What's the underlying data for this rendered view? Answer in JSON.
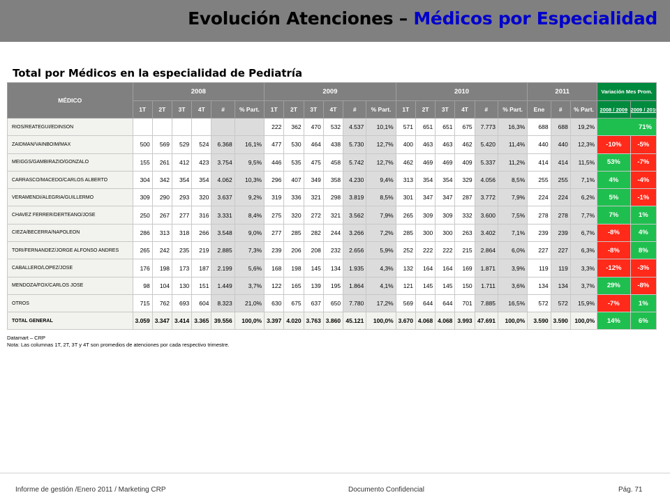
{
  "header": {
    "title_part1": "Evolución Atenciones – ",
    "title_part2": "Médicos por Especialidad"
  },
  "subtitle": "Total por Médicos en la especialidad de Pediatría",
  "table": {
    "medico_header": "MÉDICO",
    "years": [
      "2008",
      "2009",
      "2010",
      "2011"
    ],
    "variacion_header": "Variación Mes Prom.",
    "variacion_cols": [
      "2008 / 2009",
      "2009 / 2010"
    ],
    "quarter_headers": [
      "1T",
      "2T",
      "3T",
      "4T",
      "#",
      "% Part."
    ],
    "y2011_headers": [
      "Ene",
      "#",
      "% Part."
    ],
    "rows": [
      {
        "medico": "RIOS/REATEGUI/EDINSON",
        "y2008": [
          "",
          "",
          "",
          "",
          "",
          ""
        ],
        "y2009": [
          "222",
          "362",
          "470",
          "532",
          "4.537",
          "10,1%"
        ],
        "y2010": [
          "571",
          "651",
          "651",
          "675",
          "7.773",
          "16,3%"
        ],
        "y2011": [
          "688",
          "688",
          "19,2%"
        ],
        "var1": "71%",
        "var2": "",
        "var1_type": "pos",
        "var2_type": "pos",
        "merged": true
      },
      {
        "medico": "ZAIDMAN/VAINBOIM/MAX",
        "y2008": [
          "500",
          "569",
          "529",
          "524",
          "6.368",
          "16,1%"
        ],
        "y2009": [
          "477",
          "530",
          "464",
          "438",
          "5.730",
          "12,7%"
        ],
        "y2010": [
          "400",
          "463",
          "463",
          "462",
          "5.420",
          "11,4%"
        ],
        "y2011": [
          "440",
          "440",
          "12,3%"
        ],
        "var1": "-10%",
        "var2": "-5%",
        "var1_type": "neg",
        "var2_type": "neg"
      },
      {
        "medico": "MEIGGS/GAMBIRAZIO/GONZALO",
        "y2008": [
          "155",
          "261",
          "412",
          "423",
          "3.754",
          "9,5%"
        ],
        "y2009": [
          "446",
          "535",
          "475",
          "458",
          "5.742",
          "12,7%"
        ],
        "y2010": [
          "462",
          "469",
          "469",
          "409",
          "5.337",
          "11,2%"
        ],
        "y2011": [
          "414",
          "414",
          "11,5%"
        ],
        "var1": "53%",
        "var2": "-7%",
        "var1_type": "pos",
        "var2_type": "neg"
      },
      {
        "medico": "CARRASCO/MACEDO/CARLOS ALBERTO",
        "y2008": [
          "304",
          "342",
          "354",
          "354",
          "4.062",
          "10,3%"
        ],
        "y2009": [
          "296",
          "407",
          "349",
          "358",
          "4.230",
          "9,4%"
        ],
        "y2010": [
          "313",
          "354",
          "354",
          "329",
          "4.056",
          "8,5%"
        ],
        "y2011": [
          "255",
          "255",
          "7,1%"
        ],
        "var1": "4%",
        "var2": "-4%",
        "var1_type": "pos",
        "var2_type": "neg"
      },
      {
        "medico": "VERAMENDI/ALEGRIA/GUILLERMO",
        "y2008": [
          "309",
          "290",
          "293",
          "320",
          "3.637",
          "9,2%"
        ],
        "y2009": [
          "319",
          "336",
          "321",
          "298",
          "3.819",
          "8,5%"
        ],
        "y2010": [
          "301",
          "347",
          "347",
          "287",
          "3.772",
          "7,9%"
        ],
        "y2011": [
          "224",
          "224",
          "6,2%"
        ],
        "var1": "5%",
        "var2": "-1%",
        "var1_type": "pos",
        "var2_type": "neg"
      },
      {
        "medico": "CHAVEZ FERRER/DERTEANO/JOSE",
        "y2008": [
          "250",
          "267",
          "277",
          "316",
          "3.331",
          "8,4%"
        ],
        "y2009": [
          "275",
          "320",
          "272",
          "321",
          "3.562",
          "7,9%"
        ],
        "y2010": [
          "265",
          "309",
          "309",
          "332",
          "3.600",
          "7,5%"
        ],
        "y2011": [
          "278",
          "278",
          "7,7%"
        ],
        "var1": "7%",
        "var2": "1%",
        "var1_type": "pos",
        "var2_type": "pos"
      },
      {
        "medico": "CIEZA/BECERRA/NAPOLEON",
        "y2008": [
          "286",
          "313",
          "318",
          "266",
          "3.548",
          "9,0%"
        ],
        "y2009": [
          "277",
          "285",
          "282",
          "244",
          "3.266",
          "7,2%"
        ],
        "y2010": [
          "285",
          "300",
          "300",
          "263",
          "3.402",
          "7,1%"
        ],
        "y2011": [
          "239",
          "239",
          "6,7%"
        ],
        "var1": "-8%",
        "var2": "4%",
        "var1_type": "neg",
        "var2_type": "pos"
      },
      {
        "medico": "TORI/FERNANDEZ/JORGE ALFONSO ANDRES",
        "y2008": [
          "265",
          "242",
          "235",
          "219",
          "2.885",
          "7,3%"
        ],
        "y2009": [
          "239",
          "206",
          "208",
          "232",
          "2.656",
          "5,9%"
        ],
        "y2010": [
          "252",
          "222",
          "222",
          "215",
          "2.864",
          "6,0%"
        ],
        "y2011": [
          "227",
          "227",
          "6,3%"
        ],
        "var1": "-8%",
        "var2": "8%",
        "var1_type": "neg",
        "var2_type": "pos"
      },
      {
        "medico": "CABALLERO/LOPEZ/JOSE",
        "y2008": [
          "176",
          "198",
          "173",
          "187",
          "2.199",
          "5,6%"
        ],
        "y2009": [
          "168",
          "198",
          "145",
          "134",
          "1.935",
          "4,3%"
        ],
        "y2010": [
          "132",
          "164",
          "164",
          "169",
          "1.871",
          "3,9%"
        ],
        "y2011": [
          "119",
          "119",
          "3,3%"
        ],
        "var1": "-12%",
        "var2": "-3%",
        "var1_type": "neg",
        "var2_type": "neg"
      },
      {
        "medico": "MENDOZA/FOX/CARLOS JOSE",
        "y2008": [
          "98",
          "104",
          "130",
          "151",
          "1.449",
          "3,7%"
        ],
        "y2009": [
          "122",
          "165",
          "139",
          "195",
          "1.864",
          "4,1%"
        ],
        "y2010": [
          "121",
          "145",
          "145",
          "150",
          "1.711",
          "3,6%"
        ],
        "y2011": [
          "134",
          "134",
          "3,7%"
        ],
        "var1": "29%",
        "var2": "-8%",
        "var1_type": "pos",
        "var2_type": "neg"
      },
      {
        "medico": "OTROS",
        "y2008": [
          "715",
          "762",
          "693",
          "604",
          "8.323",
          "21,0%"
        ],
        "y2009": [
          "630",
          "675",
          "637",
          "650",
          "7.780",
          "17,2%"
        ],
        "y2010": [
          "569",
          "644",
          "644",
          "701",
          "7.885",
          "16,5%"
        ],
        "y2011": [
          "572",
          "572",
          "15,9%"
        ],
        "var1": "-7%",
        "var2": "1%",
        "var1_type": "neg",
        "var2_type": "pos"
      }
    ],
    "total": {
      "medico": "TOTAL GENERAL",
      "y2008": [
        "3.059",
        "3.347",
        "3.414",
        "3.365",
        "39.556",
        "100,0%"
      ],
      "y2009": [
        "3.397",
        "4.020",
        "3.763",
        "3.860",
        "45.121",
        "100,0%"
      ],
      "y2010": [
        "3.670",
        "4.068",
        "4.068",
        "3.993",
        "47.691",
        "100,0%"
      ],
      "y2011": [
        "3.590",
        "3.590",
        "100,0%"
      ],
      "var1": "14%",
      "var2": "6%",
      "var1_type": "pos",
      "var2_type": "pos"
    }
  },
  "notes": {
    "line1": "Datamart – CRP",
    "line2": "Nota: Las columnas 1T, 2T,  3T y 4T  son promedios de atenciones por cada respectivo trimestre."
  },
  "footer": {
    "left": "Informe de gestión /Enero 2011 / Marketing CRP",
    "center": "Documento Confidencial",
    "right": "Pág. 71"
  },
  "colors": {
    "banner": "#808080",
    "title_accent": "#0000cc",
    "positive": "#1fbf4f",
    "negative": "#ff2a1a",
    "variation_header": "#008a3e"
  }
}
